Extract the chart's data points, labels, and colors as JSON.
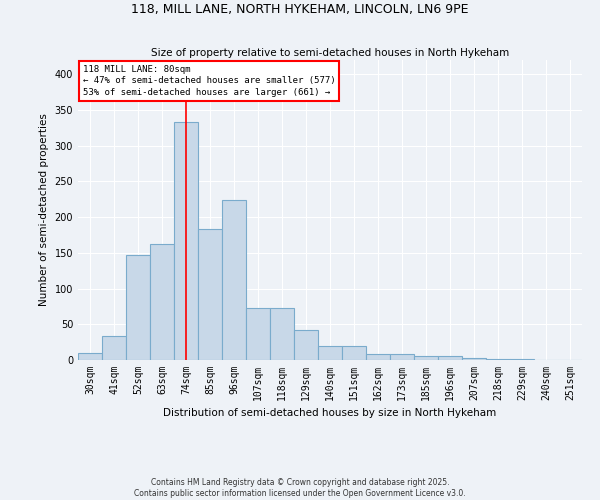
{
  "title_line1": "118, MILL LANE, NORTH HYKEHAM, LINCOLN, LN6 9PE",
  "title_line2": "Size of property relative to semi-detached houses in North Hykeham",
  "xlabel": "Distribution of semi-detached houses by size in North Hykeham",
  "ylabel": "Number of semi-detached properties",
  "categories": [
    "30sqm",
    "41sqm",
    "52sqm",
    "63sqm",
    "74sqm",
    "85sqm",
    "96sqm",
    "107sqm",
    "118sqm",
    "129sqm",
    "140sqm",
    "151sqm",
    "162sqm",
    "173sqm",
    "185sqm",
    "196sqm",
    "207sqm",
    "218sqm",
    "229sqm",
    "240sqm",
    "251sqm"
  ],
  "values": [
    10,
    33,
    147,
    162,
    333,
    184,
    224,
    73,
    73,
    42,
    19,
    19,
    8,
    8,
    5,
    5,
    3,
    1,
    1,
    0,
    0
  ],
  "bar_color": "#c8d8e8",
  "bar_edge_color": "#7aabcc",
  "vline_index": 4,
  "vline_color": "red",
  "annotation_title": "118 MILL LANE: 80sqm",
  "annotation_line2": "← 47% of semi-detached houses are smaller (577)",
  "annotation_line3": "53% of semi-detached houses are larger (661) →",
  "annotation_box_color": "red",
  "ylim": [
    0,
    420
  ],
  "yticks": [
    0,
    50,
    100,
    150,
    200,
    250,
    300,
    350,
    400
  ],
  "background_color": "#eef2f7",
  "grid_color": "white",
  "footer_line1": "Contains HM Land Registry data © Crown copyright and database right 2025.",
  "footer_line2": "Contains public sector information licensed under the Open Government Licence v3.0."
}
